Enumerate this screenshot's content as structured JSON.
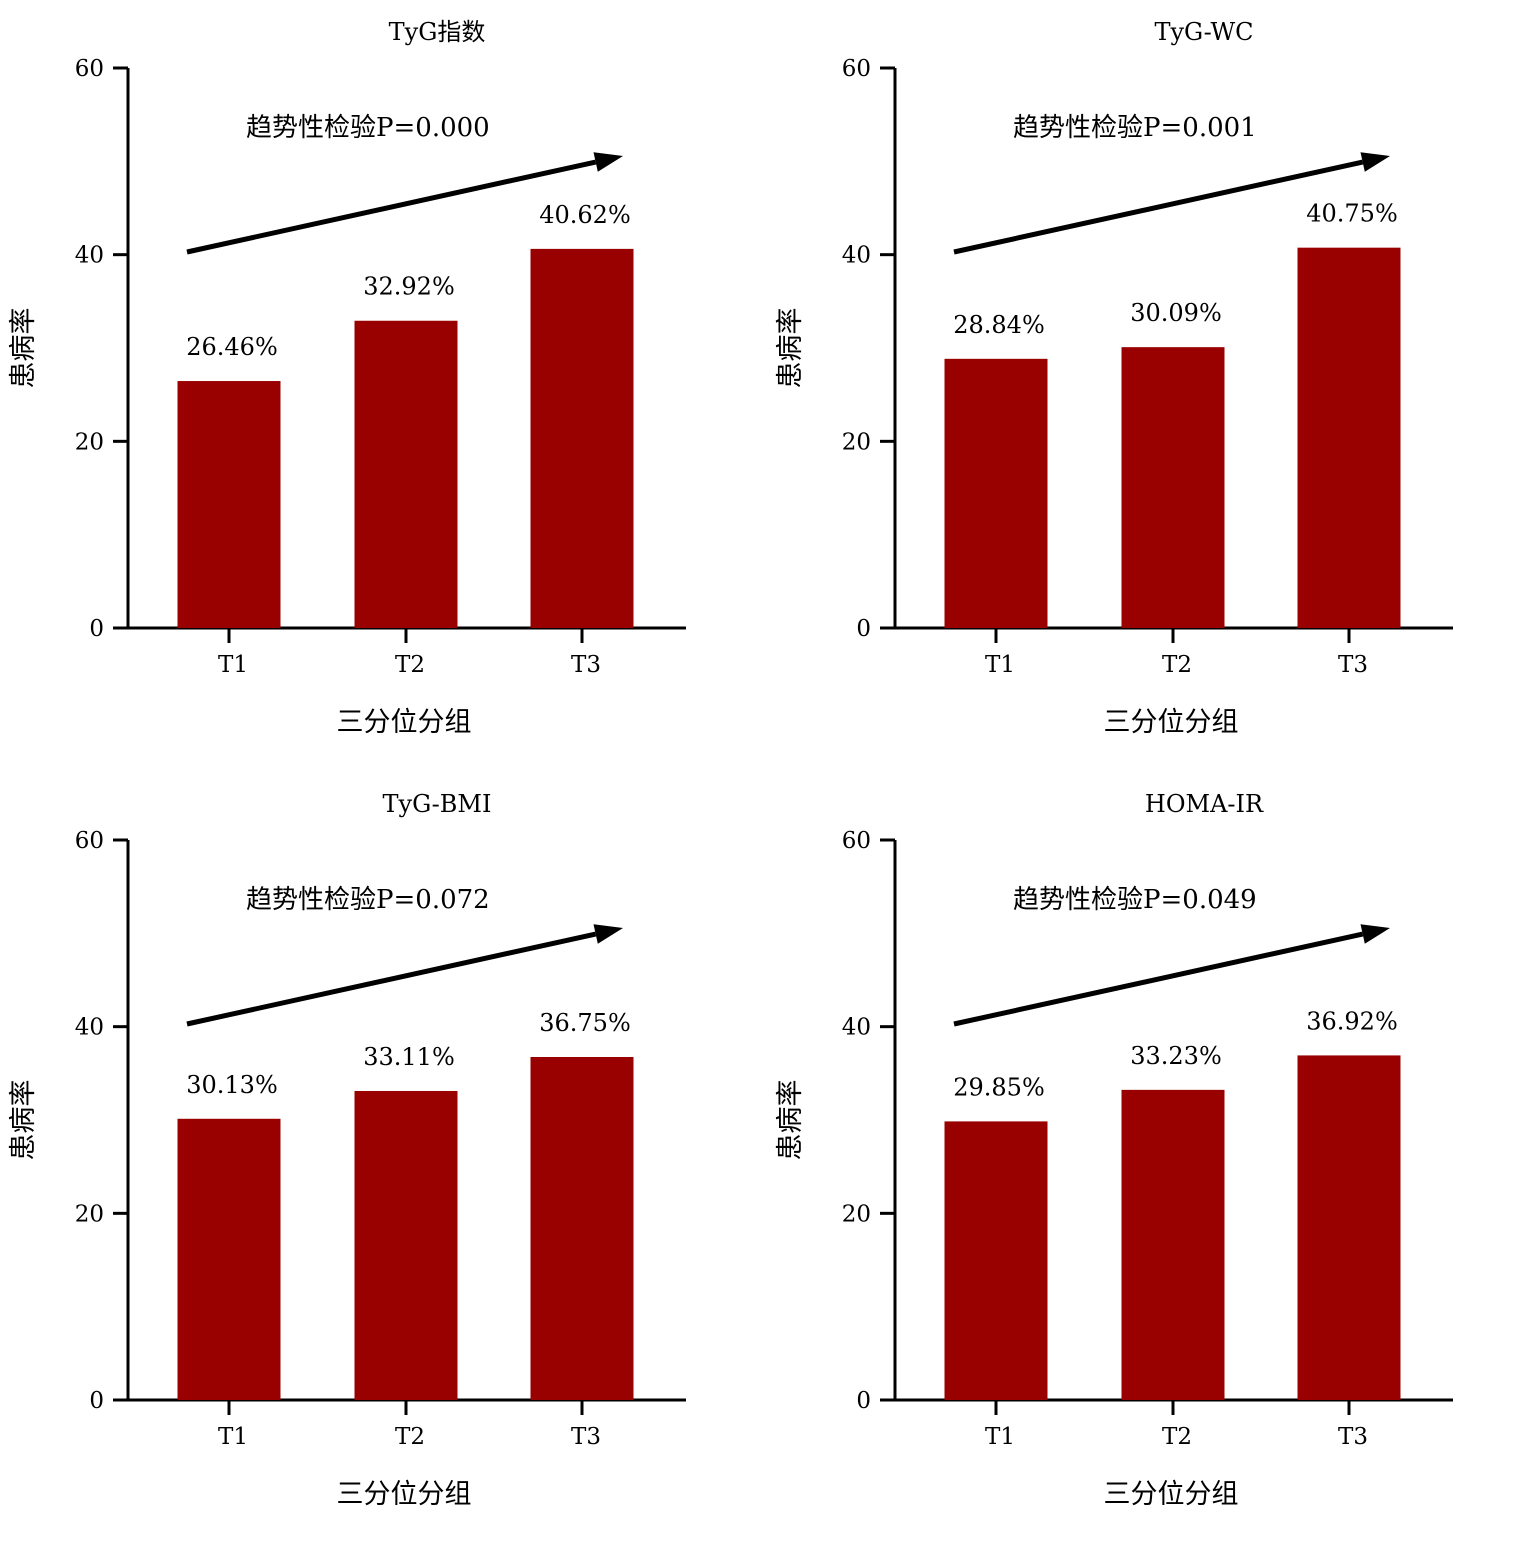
{
  "chart_data": [
    {
      "type": "bar",
      "title": "TyG指数",
      "categories": [
        "T1",
        "T2",
        "T3"
      ],
      "values": [
        26.46,
        32.92,
        40.62
      ],
      "value_labels": [
        "26.46%",
        "32.92%",
        "40.62%"
      ],
      "trend_text": "趋势性检验P=0.000",
      "xlabel": "三分位分组",
      "ylabel": "患病率",
      "ylim": [
        0,
        60
      ],
      "yticks": [
        0,
        20,
        40,
        60
      ],
      "bar_color": "#990000",
      "grid": false,
      "legend": "none"
    },
    {
      "type": "bar",
      "title": "TyG-WC",
      "categories": [
        "T1",
        "T2",
        "T3"
      ],
      "values": [
        28.84,
        30.09,
        40.75
      ],
      "value_labels": [
        "28.84%",
        "30.09%",
        "40.75%"
      ],
      "trend_text": "趋势性检验P=0.001",
      "xlabel": "三分位分组",
      "ylabel": "患病率",
      "ylim": [
        0,
        60
      ],
      "yticks": [
        0,
        20,
        40,
        60
      ],
      "bar_color": "#990000",
      "grid": false,
      "legend": "none"
    },
    {
      "type": "bar",
      "title": "TyG-BMI",
      "categories": [
        "T1",
        "T2",
        "T3"
      ],
      "values": [
        30.13,
        33.11,
        36.75
      ],
      "value_labels": [
        "30.13%",
        "33.11%",
        "36.75%"
      ],
      "trend_text": "趋势性检验P=0.072",
      "xlabel": "三分位分组",
      "ylabel": "患病率",
      "ylim": [
        0,
        60
      ],
      "yticks": [
        0,
        20,
        40,
        60
      ],
      "bar_color": "#990000",
      "grid": false,
      "legend": "none"
    },
    {
      "type": "bar",
      "title": "HOMA-IR",
      "categories": [
        "T1",
        "T2",
        "T3"
      ],
      "values": [
        29.85,
        33.23,
        36.92
      ],
      "value_labels": [
        "29.85%",
        "33.23%",
        "36.92%"
      ],
      "trend_text": "趋势性检验P=0.049",
      "xlabel": "三分位分组",
      "ylabel": "患病率",
      "ylim": [
        0,
        60
      ],
      "yticks": [
        0,
        20,
        40,
        60
      ],
      "bar_color": "#990000",
      "grid": false,
      "legend": "none"
    }
  ]
}
